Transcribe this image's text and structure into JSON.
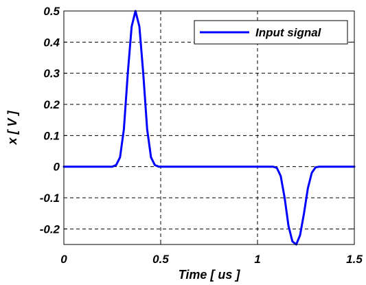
{
  "chart_data": {
    "type": "line",
    "title": "",
    "xlabel": "Time [ us ]",
    "ylabel": "x [ V ]",
    "xlim": [
      0,
      1.5
    ],
    "ylim": [
      -0.25,
      0.5
    ],
    "x_ticks": [
      0,
      0.5,
      1,
      1.5
    ],
    "x_tick_labels": [
      "0",
      "0.5",
      "1",
      "1.5"
    ],
    "y_ticks": [
      -0.2,
      -0.1,
      0,
      0.1,
      0.2,
      0.3,
      0.4,
      0.5
    ],
    "y_tick_labels": [
      "-0.2",
      "-0.1",
      "0",
      "0.1",
      "0.2",
      "0.3",
      "0.4",
      "0.5"
    ],
    "grid": true,
    "grid_style": "dashed",
    "legend_position": "top-right",
    "series": [
      {
        "name": "Input signal",
        "color": "#0000ff",
        "x": [
          0,
          0.25,
          0.27,
          0.29,
          0.31,
          0.33,
          0.35,
          0.37,
          0.39,
          0.41,
          0.43,
          0.45,
          0.47,
          0.49,
          0.5,
          1.0,
          1.08,
          1.1,
          1.12,
          1.14,
          1.16,
          1.18,
          1.2,
          1.22,
          1.24,
          1.26,
          1.28,
          1.3,
          1.32,
          1.5
        ],
        "y": [
          0,
          0,
          0.005,
          0.03,
          0.12,
          0.3,
          0.45,
          0.5,
          0.45,
          0.3,
          0.12,
          0.03,
          0.005,
          0,
          0,
          0,
          0,
          -0.004,
          -0.03,
          -0.1,
          -0.19,
          -0.24,
          -0.25,
          -0.22,
          -0.15,
          -0.07,
          -0.02,
          -0.002,
          0,
          0
        ]
      }
    ]
  }
}
